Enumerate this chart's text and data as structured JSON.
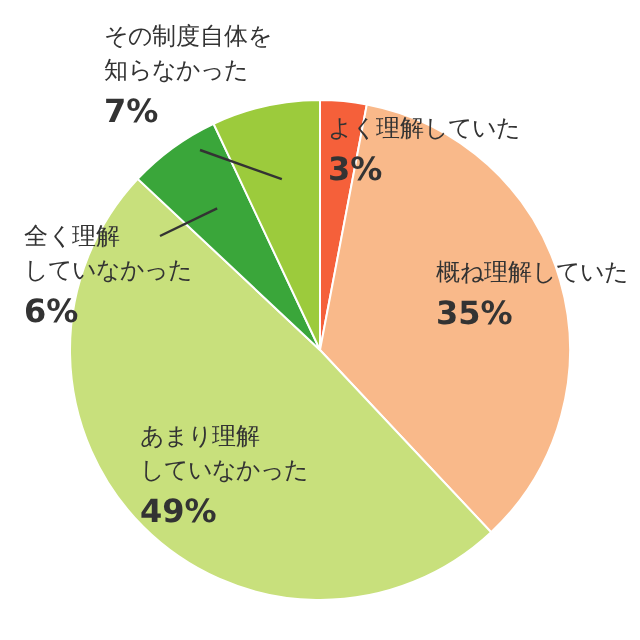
{
  "chart_data": {
    "type": "pie",
    "categories": [
      "よく理解していた",
      "概ね理解していた",
      "あまり理解していなかった",
      "全く理解していなかった",
      "その制度自体を知らなかった"
    ],
    "values": [
      3,
      35,
      49,
      6,
      7
    ],
    "colors": [
      "#f5603a",
      "#f9b98a",
      "#c8e07c",
      "#3aa63a",
      "#9ccb3c"
    ],
    "value_labels": [
      "3%",
      "35%",
      "49%",
      "6%",
      "7%"
    ]
  }
}
